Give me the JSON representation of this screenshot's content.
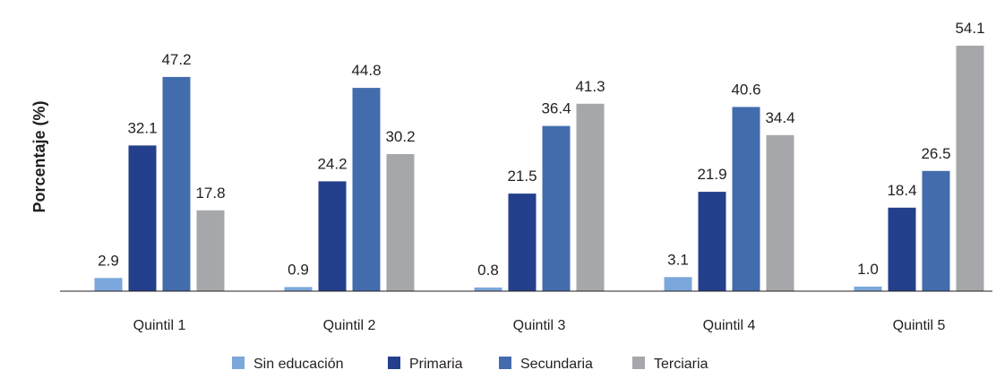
{
  "chart_data": {
    "type": "bar",
    "ylabel": "Porcentaje (%)",
    "xlabel": "",
    "categories": [
      "Quintil 1",
      "Quintil 2",
      "Quintil 3",
      "Quintil 4",
      "Quintil 5"
    ],
    "series": [
      {
        "name": "Sin educación",
        "color": "#7ba7dc",
        "values": [
          2.9,
          0.9,
          0.8,
          3.1,
          1.0
        ]
      },
      {
        "name": "Primaria",
        "color": "#243f8c",
        "values": [
          32.1,
          24.2,
          21.5,
          21.9,
          18.4
        ]
      },
      {
        "name": "Secundaria",
        "color": "#436cad",
        "values": [
          47.2,
          44.8,
          36.4,
          40.6,
          26.5
        ]
      },
      {
        "name": "Terciaria",
        "color": "#a6a7aa",
        "values": [
          17.8,
          30.2,
          41.3,
          34.4,
          54.1
        ]
      }
    ],
    "value_labels": [
      [
        "2.9",
        "0.9",
        "0.8",
        "3.1",
        "1.0"
      ],
      [
        "32.1",
        "24.2",
        "21.5",
        "21.9",
        "18.4"
      ],
      [
        "47.2",
        "44.8",
        "36.4",
        "40.6",
        "26.5"
      ],
      [
        "17.8",
        "30.2",
        "41.3",
        "34.4",
        "54.1"
      ]
    ],
    "ylim": [
      0,
      55
    ],
    "grid": false,
    "legend": "bottom"
  }
}
